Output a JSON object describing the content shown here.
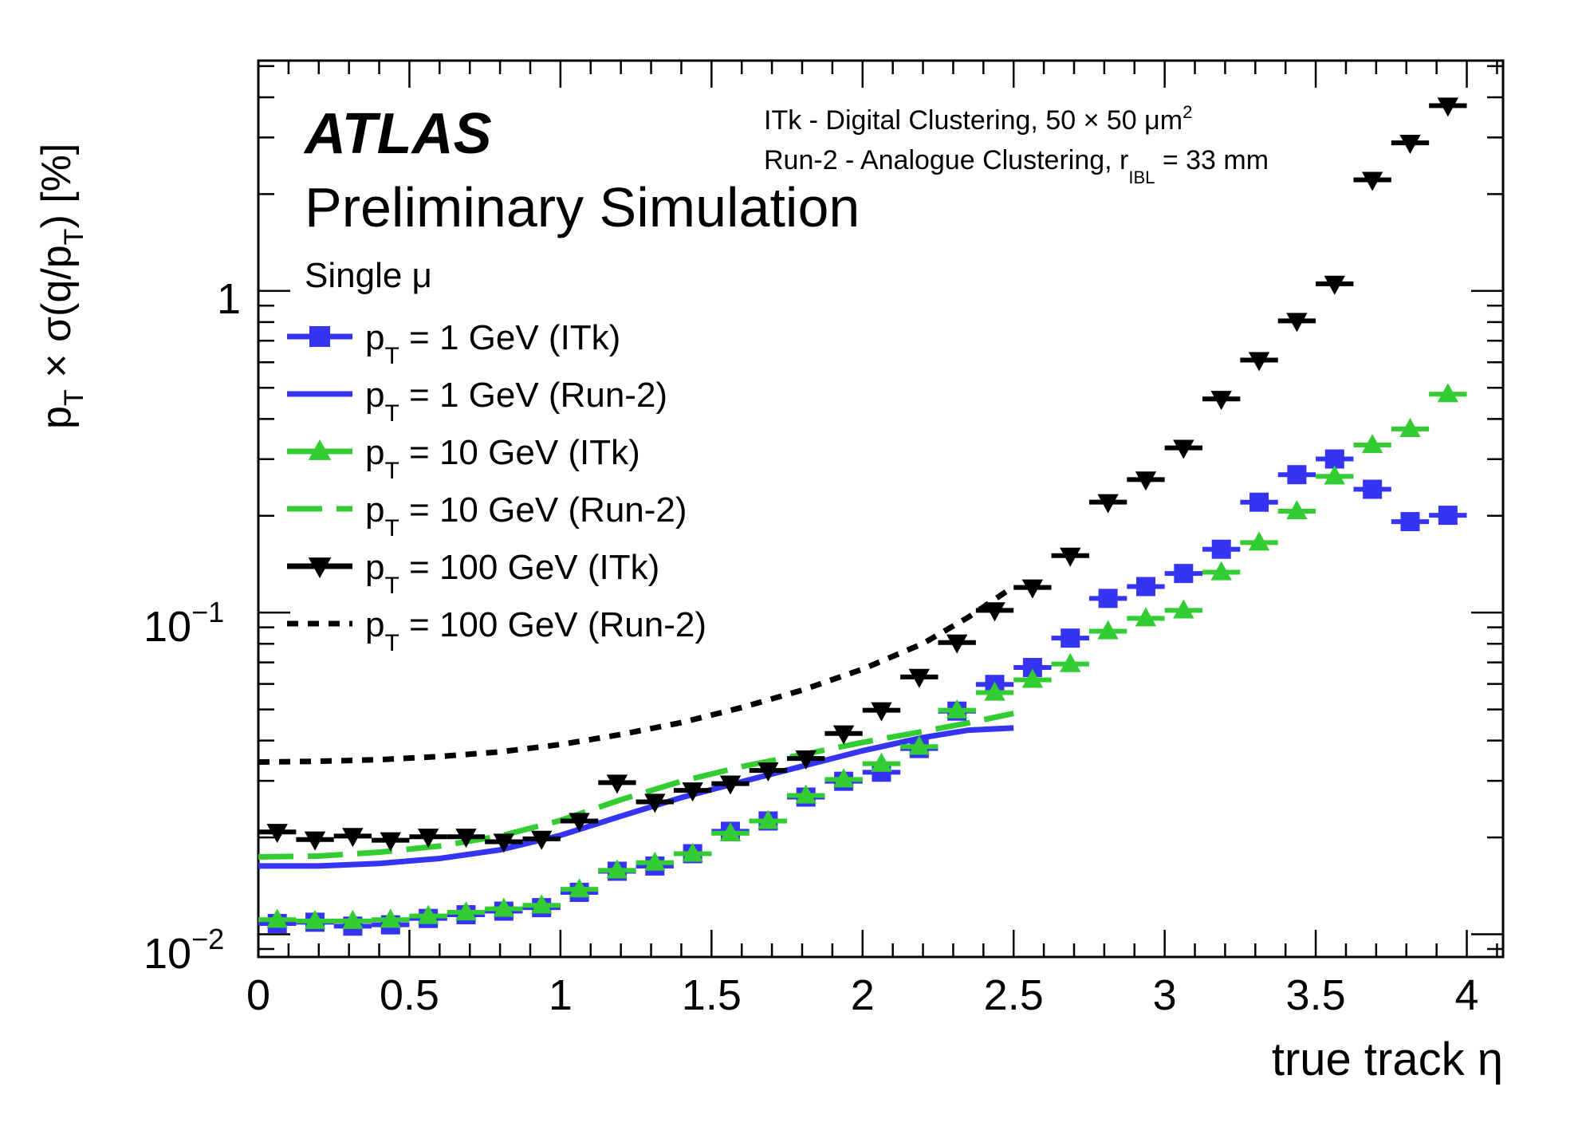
{
  "chart_data": {
    "type": "scatter",
    "title": "",
    "xlabel": "true track η",
    "ylabel": "p_T × σ(q/p_T) [%]",
    "xlim": [
      0,
      4.12
    ],
    "ylim": [
      0.0085,
      5.2
    ],
    "yscale": "log",
    "grid": false,
    "legend_position": "top-left",
    "x_ticks": [
      0,
      0.5,
      1,
      1.5,
      2,
      2.5,
      3,
      3.5,
      4
    ],
    "x_tick_labels": [
      "0",
      "0.5",
      "1",
      "1.5",
      "2",
      "2.5",
      "3",
      "3.5",
      "4"
    ],
    "y_ticks": [
      0.01,
      0.1,
      1
    ],
    "y_tick_labels": {
      "tick_1": {
        "base": "10",
        "exp": "−2"
      },
      "tick_2": {
        "base": "10",
        "exp": "−1"
      },
      "tick_3": {
        "base": "1",
        "exp": ""
      }
    },
    "bin_half_width": 0.0625,
    "series": [
      {
        "name": "p_T = 1 GeV (ITk)",
        "kind": "markers",
        "marker": "square",
        "color": "#3434f2",
        "x": [
          0.0625,
          0.1875,
          0.3125,
          0.4375,
          0.5625,
          0.6875,
          0.8125,
          0.9375,
          1.0625,
          1.1875,
          1.3125,
          1.4375,
          1.5625,
          1.6875,
          1.8125,
          1.9375,
          2.0625,
          2.1875,
          2.3125,
          2.4375,
          2.5625,
          2.6875,
          2.8125,
          2.9375,
          3.0625,
          3.1875,
          3.3125,
          3.4375,
          3.5625,
          3.6875,
          3.8125,
          3.9375
        ],
        "y": [
          0.0108,
          0.0109,
          0.0106,
          0.0107,
          0.0112,
          0.0115,
          0.0118,
          0.0121,
          0.0135,
          0.0157,
          0.0163,
          0.0178,
          0.0209,
          0.0225,
          0.0267,
          0.0299,
          0.0319,
          0.0378,
          0.0494,
          0.0598,
          0.0675,
          0.0833,
          0.1107,
          0.1205,
          0.1323,
          0.1574,
          0.2204,
          0.2684,
          0.3003,
          0.2418,
          0.1918,
          0.2007
        ]
      },
      {
        "name": "p_T = 1 GeV (Run-2)",
        "kind": "line",
        "dash": "solid",
        "color": "#3434f2",
        "x": [
          0.0,
          0.2,
          0.4,
          0.6,
          0.8,
          1.0,
          1.2,
          1.4,
          1.6,
          1.8,
          2.0,
          2.2,
          2.35,
          2.5
        ],
        "y": [
          0.0163,
          0.0163,
          0.0166,
          0.0172,
          0.0183,
          0.0203,
          0.0233,
          0.0266,
          0.0298,
          0.0333,
          0.0372,
          0.0409,
          0.0431,
          0.0438
        ]
      },
      {
        "name": "p_T = 10 GeV (ITk)",
        "kind": "markers",
        "marker": "triangle-up",
        "color": "#33cc33",
        "x": [
          0.0625,
          0.1875,
          0.3125,
          0.4375,
          0.5625,
          0.6875,
          0.8125,
          0.9375,
          1.0625,
          1.1875,
          1.3125,
          1.4375,
          1.5625,
          1.6875,
          1.8125,
          1.9375,
          2.0625,
          2.1875,
          2.3125,
          2.4375,
          2.5625,
          2.6875,
          2.8125,
          2.9375,
          3.0625,
          3.1875,
          3.3125,
          3.4375,
          3.5625,
          3.6875,
          3.8125,
          3.9375
        ],
        "y": [
          0.0111,
          0.011,
          0.011,
          0.0111,
          0.0114,
          0.0117,
          0.012,
          0.0123,
          0.0138,
          0.0158,
          0.0167,
          0.0178,
          0.0206,
          0.0225,
          0.027,
          0.0303,
          0.0339,
          0.0383,
          0.0497,
          0.0564,
          0.0618,
          0.0692,
          0.0875,
          0.096,
          0.1016,
          0.1335,
          0.1651,
          0.2066,
          0.2651,
          0.3319,
          0.3723,
          0.4776
        ]
      },
      {
        "name": "p_T = 10 GeV (Run-2)",
        "kind": "line",
        "dash": "long-dash",
        "color": "#33cc33",
        "x": [
          0.0,
          0.2,
          0.4,
          0.6,
          0.8,
          1.0,
          1.2,
          1.4,
          1.6,
          1.8,
          2.0,
          2.2,
          2.35,
          2.5
        ],
        "y": [
          0.0174,
          0.0175,
          0.018,
          0.0188,
          0.0202,
          0.0226,
          0.0262,
          0.0299,
          0.0332,
          0.0362,
          0.0395,
          0.0427,
          0.0454,
          0.0486
        ]
      },
      {
        "name": "p_T = 100 GeV (ITk)",
        "kind": "markers",
        "marker": "triangle-down",
        "color": "#000000",
        "x": [
          0.0625,
          0.1875,
          0.3125,
          0.4375,
          0.5625,
          0.6875,
          0.8125,
          0.9375,
          1.0625,
          1.1875,
          1.3125,
          1.4375,
          1.5625,
          1.6875,
          1.8125,
          1.9375,
          2.0625,
          2.1875,
          2.3125,
          2.4375,
          2.5625,
          2.6875,
          2.8125,
          2.9375,
          3.0625,
          3.1875,
          3.3125,
          3.4375,
          3.5625,
          3.6875,
          3.8125,
          3.9375
        ],
        "y": [
          0.0208,
          0.0197,
          0.0202,
          0.0196,
          0.0201,
          0.0201,
          0.0194,
          0.0198,
          0.0225,
          0.0296,
          0.0258,
          0.028,
          0.0294,
          0.0323,
          0.0352,
          0.0421,
          0.0497,
          0.0631,
          0.0807,
          0.1016,
          0.1197,
          0.1503,
          0.2205,
          0.2592,
          0.3252,
          0.4617,
          0.6095,
          0.8067,
          1.0523,
          2.2144,
          2.8872,
          3.7674
        ]
      },
      {
        "name": "p_T = 100 GeV (Run-2)",
        "kind": "line",
        "dash": "short-dash",
        "color": "#000000",
        "x": [
          0.0,
          0.2,
          0.4,
          0.6,
          0.8,
          1.0,
          1.2,
          1.4,
          1.6,
          1.8,
          2.0,
          2.2,
          2.35,
          2.5
        ],
        "y": [
          0.0343,
          0.0345,
          0.0349,
          0.0357,
          0.0369,
          0.0389,
          0.0418,
          0.0455,
          0.0507,
          0.0574,
          0.0667,
          0.0801,
          0.0968,
          0.1204
        ]
      }
    ],
    "annotations": {
      "atlas": "ATLAS",
      "status": "Preliminary Simulation",
      "process": "Single μ",
      "itk_line": {
        "text": "ITk - Digital Clustering, 50 × 50 μm",
        "sup": "2"
      },
      "run2_line": {
        "text": "Run-2 - Analogue Clustering, r",
        "sub": "IBL",
        "rest": " = 33 mm"
      }
    },
    "legend_entries": [
      {
        "p": "p",
        "sub": "T",
        "rest": " = 1 GeV (ITk)"
      },
      {
        "p": "p",
        "sub": "T",
        "rest": " = 1 GeV (Run-2)"
      },
      {
        "p": "p",
        "sub": "T",
        "rest": " = 10 GeV (ITk)"
      },
      {
        "p": "p",
        "sub": "T",
        "rest": " = 10 GeV (Run-2)"
      },
      {
        "p": "p",
        "sub": "T",
        "rest": " = 100 GeV (ITk)"
      },
      {
        "p": "p",
        "sub": "T",
        "rest": " = 100 GeV (Run-2)"
      }
    ],
    "ylabel_parts": {
      "a": "p",
      "a_sub": "T",
      "b": " × σ(q/p",
      "b_sub": "T",
      "c": ") [%]"
    }
  }
}
